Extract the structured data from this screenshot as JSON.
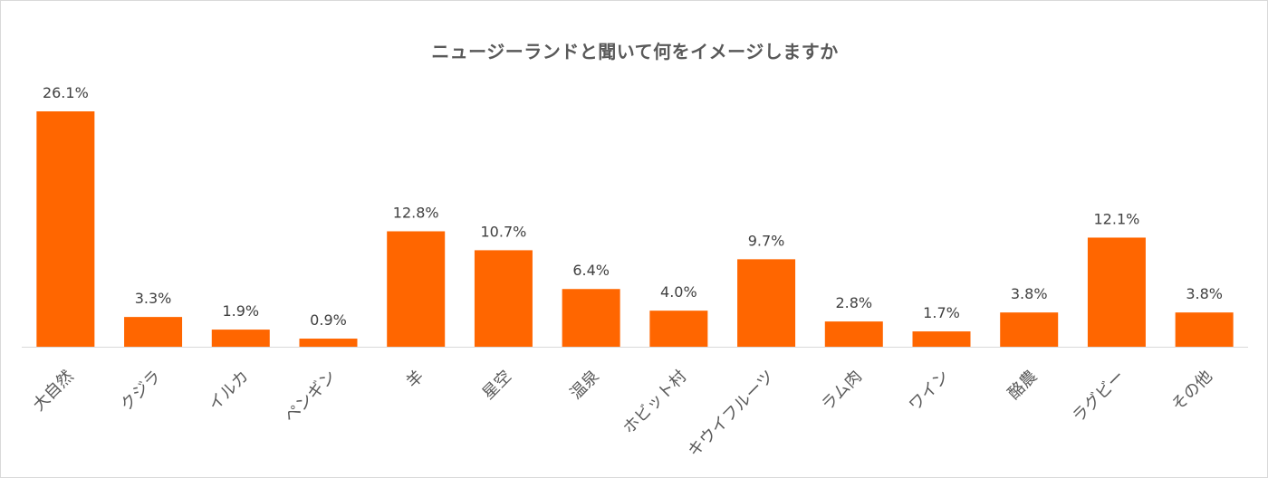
{
  "chart_data": {
    "type": "bar",
    "title": "ニュージーランドと聞いて何をイメージしますか",
    "categories": [
      "大自然",
      "クジラ",
      "イルカ",
      "ペンギン",
      "羊",
      "星空",
      "温泉",
      "ホビット村",
      "キウイフルーツ",
      "ラム肉",
      "ワイン",
      "酪農",
      "ラグビー",
      "その他"
    ],
    "values": [
      26.1,
      3.3,
      1.9,
      0.9,
      12.8,
      10.7,
      6.4,
      4.0,
      9.7,
      2.8,
      1.7,
      3.8,
      12.1,
      3.8
    ],
    "data_labels": [
      "26.1%",
      "3.3%",
      "1.9%",
      "0.9%",
      "12.8%",
      "10.7%",
      "6.4%",
      "4.0%",
      "9.7%",
      "2.8%",
      "1.7%",
      "3.8%",
      "12.1%",
      "3.8%"
    ],
    "value_unit": "%",
    "bar_color": "#ff6600",
    "axis_color": "#d9d9d9",
    "grid": false,
    "legend": "none",
    "xlabel": "",
    "ylabel": ""
  }
}
